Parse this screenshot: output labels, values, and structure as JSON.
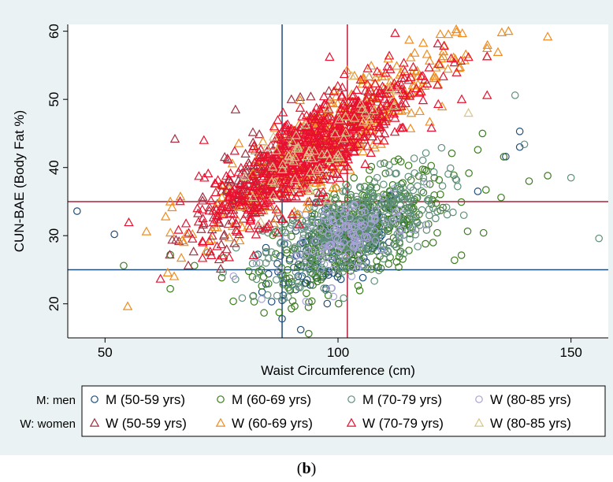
{
  "chart_data": {
    "type": "scatter",
    "xlabel": "Waist Circumference (cm)",
    "ylabel": "CUN-BAE (Body Fat %)",
    "xlim": [
      42,
      158
    ],
    "ylim": [
      15,
      61
    ],
    "xticks": [
      50,
      100,
      150
    ],
    "yticks": [
      20,
      30,
      40,
      50,
      60
    ],
    "reference_lines": {
      "men_waist_x": 88,
      "women_waist_x": 102,
      "men_fat_y": 25,
      "women_fat_y": 35
    },
    "legend_prefix": [
      "M: men",
      "W: women"
    ],
    "series": [
      {
        "name": "M (50-59 yrs)",
        "marker": "circle",
        "color": "#1f4e79",
        "cx": 100,
        "cy": 28.5,
        "sx": 7.5,
        "sy": 3.0,
        "slope": 0.26,
        "count": 160,
        "outliers": [
          [
            44,
            33.6
          ],
          [
            52,
            30.2
          ],
          [
            88,
            17.8
          ],
          [
            92,
            16.2
          ],
          [
            88,
            20.5
          ],
          [
            139,
            45.3
          ],
          [
            139,
            43
          ],
          [
            136,
            41.6
          ],
          [
            130,
            36.5
          ]
        ]
      },
      {
        "name": "M (60-69 yrs)",
        "marker": "circle",
        "color": "#3a7d1e",
        "cx": 104,
        "cy": 30.5,
        "sx": 10,
        "sy": 3.6,
        "slope": 0.26,
        "count": 380,
        "outliers": [
          [
            54,
            25.6
          ],
          [
            64,
            22.2
          ],
          [
            64,
            27.2
          ],
          [
            145,
            38.8
          ],
          [
            141,
            38
          ],
          [
            135,
            35.6
          ],
          [
            131,
            45
          ],
          [
            130,
            42.6
          ],
          [
            125,
            26.4
          ],
          [
            82,
            20.3
          ],
          [
            90,
            19.3
          ]
        ]
      },
      {
        "name": "M (70-79 yrs)",
        "marker": "circle",
        "color": "#5f8f7a",
        "cx": 103,
        "cy": 31,
        "sx": 9.5,
        "sy": 3.4,
        "slope": 0.26,
        "count": 420,
        "outliers": [
          [
            156,
            29.6
          ],
          [
            150,
            38.5
          ],
          [
            138,
            50.6
          ],
          [
            140,
            43.4
          ],
          [
            127,
            33
          ],
          [
            72,
            27.5
          ],
          [
            78,
            23.6
          ]
        ]
      },
      {
        "name": "W (80-85 yrs)",
        "marker": "circle",
        "color": "#a8a3d6",
        "cx": 102,
        "cy": 30,
        "sx": 6.5,
        "sy": 2.6,
        "slope": 0.26,
        "count": 130,
        "outliers": []
      },
      {
        "name": "W (50-59 yrs)",
        "marker": "triangle",
        "color": "#a03040",
        "cx": 85,
        "cy": 38.5,
        "sx": 8,
        "sy": 3.0,
        "slope": 0.45,
        "count": 220,
        "outliers": [
          [
            65,
            44.2
          ],
          [
            78,
            48.5
          ],
          [
            90,
            50
          ],
          [
            84,
            36
          ]
        ]
      },
      {
        "name": "W (60-69 yrs)",
        "marker": "triangle",
        "color": "#f08c1e",
        "cx": 98,
        "cy": 44,
        "sx": 13,
        "sy": 3.3,
        "slope": 0.45,
        "count": 380,
        "outliers": [
          [
            145,
            59.2
          ],
          [
            132,
            57.5
          ],
          [
            132,
            56.3
          ],
          [
            126,
            54.6
          ],
          [
            63,
            32.8
          ],
          [
            64,
            35
          ]
        ]
      },
      {
        "name": "W (70-79 yrs)",
        "marker": "triangle",
        "color": "#e8102e",
        "cx": 94,
        "cy": 42.5,
        "sx": 11.5,
        "sy": 3.3,
        "slope": 0.45,
        "count": 720,
        "outliers": [
          [
            111,
            56.4
          ],
          [
            128,
            56.2
          ],
          [
            125,
            55.4
          ],
          [
            132,
            50.6
          ],
          [
            71,
            29
          ]
        ]
      },
      {
        "name": "W (80-85 yrs)",
        "marker": "triangle",
        "color": "#d8c48a",
        "cx": 97,
        "cy": 44,
        "sx": 9,
        "sy": 3.0,
        "slope": 0.45,
        "count": 60,
        "outliers": [
          [
            128,
            48
          ]
        ]
      }
    ],
    "legend_order": [
      0,
      1,
      2,
      3,
      4,
      5,
      6,
      7
    ],
    "ref_colors": {
      "men": "#1f4e79",
      "women": "#b0203a"
    }
  },
  "panel_label": "b"
}
